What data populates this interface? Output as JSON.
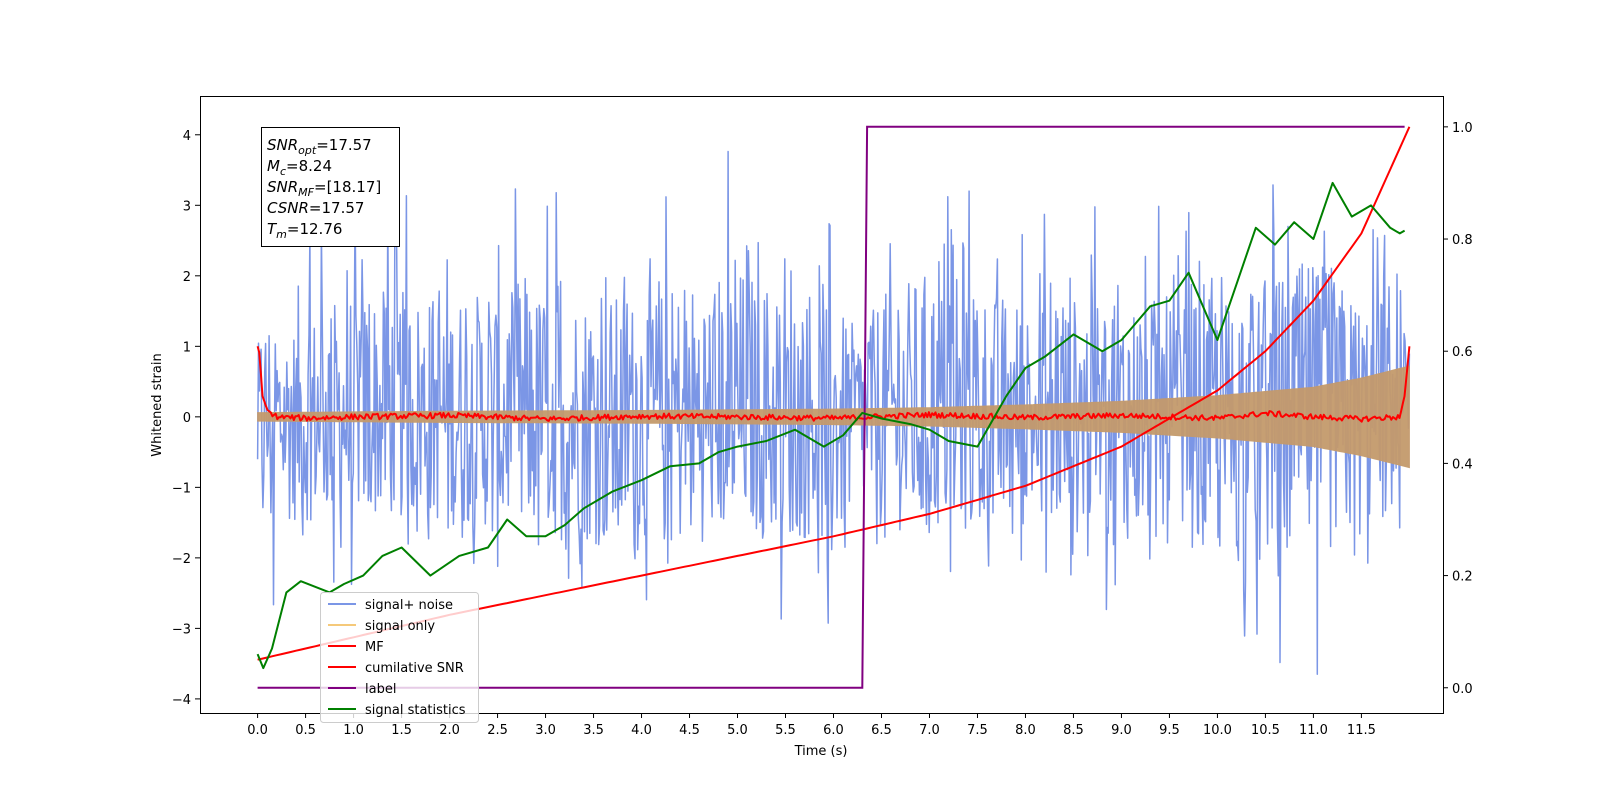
{
  "chart_data": {
    "type": "line",
    "xlabel": "Time (s)",
    "ylabel": "Whitened strain",
    "xlim": [
      -0.6,
      12.35
    ],
    "ylim": [
      -4.2,
      4.55
    ],
    "ylim_right": [
      -0.045,
      1.055
    ],
    "xticks": [
      0.0,
      0.5,
      1.0,
      1.5,
      2.0,
      2.5,
      3.0,
      3.5,
      4.0,
      4.5,
      5.0,
      5.5,
      6.0,
      6.5,
      7.0,
      7.5,
      8.0,
      8.5,
      9.0,
      9.5,
      10.0,
      10.5,
      11.0,
      11.5
    ],
    "xtick_labels": [
      "0.0",
      "0.5",
      "1.0",
      "1.5",
      "2.0",
      "2.5",
      "3.0",
      "3.5",
      "4.0",
      "4.5",
      "5.0",
      "5.5",
      "6.0",
      "6.5",
      "7.0",
      "7.5",
      "8.0",
      "8.5",
      "9.0",
      "9.5",
      "10.0",
      "10.5",
      "11.0",
      "11.5"
    ],
    "yticks": [
      4,
      3,
      2,
      1,
      0,
      -1,
      -2,
      -3,
      -4
    ],
    "ytick_labels": [
      "4",
      "3",
      "2",
      "1",
      "0",
      "−1",
      "−2",
      "−3",
      "−4"
    ],
    "yticks_right": [
      1.0,
      0.8,
      0.6,
      0.4,
      0.2,
      0.0
    ],
    "ytick_labels_right": [
      "1.0",
      "0.8",
      "0.6",
      "0.4",
      "0.2",
      "0.0"
    ],
    "annotation": {
      "lines": [
        {
          "sym": "SNR",
          "sub": "opt",
          "val": "=17.57"
        },
        {
          "sym": "M",
          "sub": "c",
          "val": "=8.24"
        },
        {
          "sym": "SNR",
          "sub": "MF",
          "val": "=[18.17]"
        },
        {
          "sym": "CSNR",
          "sub": "",
          "val": "=17.57"
        },
        {
          "sym": "T",
          "sub": "m",
          "val": "=12.76"
        }
      ]
    },
    "legend": {
      "position": "lower-left",
      "entries": [
        {
          "name": "signal+ noise",
          "color": "#7b96e6"
        },
        {
          "name": "signal only",
          "color": "#f5c97a"
        },
        {
          "name": "MF",
          "color": "#ff0000"
        },
        {
          "name": "cumilative SNR",
          "color": "#ff0000"
        },
        {
          "name": "label",
          "color": "#800080"
        },
        {
          "name": "signal statistics",
          "color": "#008000"
        }
      ]
    },
    "series": [
      {
        "name": "signal+ noise",
        "axis": "left",
        "color": "#7b96e6",
        "envelope_x": [
          0.0,
          1.0,
          2.0,
          3.0,
          4.0,
          5.0,
          6.0,
          6.3,
          6.5,
          7.0,
          8.0,
          9.0,
          10.0,
          11.0,
          11.5,
          12.0
        ],
        "envelope_max": [
          1.9,
          3.3,
          3.2,
          3.3,
          3.1,
          3.9,
          2.8,
          2.2,
          3.2,
          3.8,
          3.0,
          3.2,
          3.0,
          4.1,
          3.0,
          2.9
        ],
        "envelope_min": [
          -2.8,
          -2.6,
          -2.8,
          -3.1,
          -3.6,
          -3.0,
          -3.3,
          -2.4,
          -2.9,
          -3.0,
          -3.0,
          -3.2,
          -3.5,
          -3.7,
          -3.2,
          -2.9
        ]
      },
      {
        "name": "signal only",
        "axis": "left",
        "color": "#c49a6c",
        "x": [
          0.0,
          2.0,
          4.0,
          6.0,
          7.0,
          8.0,
          9.0,
          10.0,
          11.0,
          11.5,
          12.0
        ],
        "amplitude": [
          0.06,
          0.08,
          0.09,
          0.11,
          0.13,
          0.17,
          0.22,
          0.3,
          0.42,
          0.55,
          0.72
        ]
      },
      {
        "name": "MF",
        "axis": "left",
        "color": "#ff0000",
        "x": [
          0.0,
          0.02,
          0.05,
          0.1,
          0.2,
          0.5,
          1.0,
          2.0,
          3.0,
          4.0,
          5.0,
          6.0,
          7.0,
          8.0,
          9.0,
          10.0,
          10.5,
          11.0,
          11.5,
          11.9,
          11.95,
          12.0
        ],
        "y": [
          1.0,
          0.9,
          0.3,
          0.1,
          0.0,
          -0.02,
          0.0,
          0.02,
          -0.03,
          0.01,
          0.0,
          -0.02,
          0.03,
          -0.01,
          0.02,
          -0.02,
          0.05,
          0.0,
          -0.03,
          0.0,
          0.3,
          1.0
        ],
        "noise_amplitude": 0.04
      },
      {
        "name": "cumilative SNR",
        "axis": "right",
        "color": "#ff0000",
        "x": [
          0.0,
          1.0,
          2.0,
          3.0,
          4.0,
          5.0,
          6.0,
          7.0,
          8.0,
          9.0,
          10.0,
          10.5,
          11.0,
          11.5,
          12.0
        ],
        "y": [
          0.05,
          0.09,
          0.13,
          0.165,
          0.2,
          0.235,
          0.27,
          0.31,
          0.36,
          0.43,
          0.53,
          0.6,
          0.69,
          0.81,
          1.0
        ]
      },
      {
        "name": "label",
        "axis": "right",
        "color": "#800080",
        "x": [
          0.0,
          6.3,
          6.35,
          11.95
        ],
        "y": [
          0.0,
          0.0,
          1.0,
          1.0
        ]
      },
      {
        "name": "signal statistics",
        "axis": "right",
        "color": "#008000",
        "x": [
          0.0,
          0.06,
          0.15,
          0.3,
          0.45,
          0.6,
          0.75,
          0.9,
          1.1,
          1.3,
          1.5,
          1.8,
          2.1,
          2.4,
          2.6,
          2.8,
          3.0,
          3.2,
          3.4,
          3.7,
          4.0,
          4.3,
          4.6,
          4.8,
          5.0,
          5.3,
          5.6,
          5.9,
          6.1,
          6.3,
          6.5,
          6.8,
          7.0,
          7.2,
          7.5,
          7.8,
          8.0,
          8.2,
          8.5,
          8.8,
          9.0,
          9.3,
          9.5,
          9.7,
          9.9,
          10.0,
          10.2,
          10.4,
          10.6,
          10.8,
          11.0,
          11.2,
          11.4,
          11.6,
          11.8,
          11.9,
          11.95
        ],
        "y": [
          0.06,
          0.035,
          0.07,
          0.17,
          0.19,
          0.18,
          0.17,
          0.185,
          0.2,
          0.235,
          0.25,
          0.2,
          0.235,
          0.25,
          0.3,
          0.27,
          0.27,
          0.29,
          0.32,
          0.35,
          0.37,
          0.395,
          0.4,
          0.42,
          0.43,
          0.44,
          0.46,
          0.43,
          0.45,
          0.49,
          0.48,
          0.47,
          0.46,
          0.44,
          0.43,
          0.52,
          0.57,
          0.59,
          0.63,
          0.6,
          0.62,
          0.68,
          0.69,
          0.74,
          0.66,
          0.62,
          0.72,
          0.82,
          0.79,
          0.83,
          0.8,
          0.9,
          0.84,
          0.86,
          0.82,
          0.81,
          0.815
        ]
      }
    ]
  }
}
